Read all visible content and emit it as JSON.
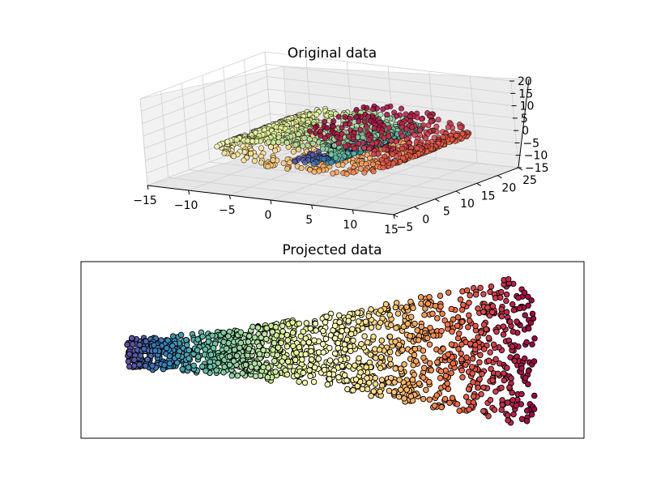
{
  "chart_data": [
    {
      "type": "scatter",
      "projection": "3d",
      "title": "Original data",
      "xlabel": "",
      "ylabel": "",
      "zlabel": "",
      "x_ticks": [
        "−15",
        "−10",
        "−5",
        "0",
        "5",
        "10",
        "15"
      ],
      "y_ticks": [
        "−5",
        "0",
        "5",
        "10",
        "15",
        "20",
        "25"
      ],
      "z_ticks": [
        "−15",
        "−10",
        "−5",
        "0",
        "5",
        "10",
        "15",
        "20"
      ],
      "xlim": [
        -15,
        15
      ],
      "ylim": [
        -5,
        25
      ],
      "zlim": [
        -15,
        20
      ],
      "grid": true,
      "colormap": "Spectral",
      "shape": "swiss roll",
      "n_points": 1500,
      "point_edge_color": "#000000"
    },
    {
      "type": "scatter",
      "title": "Projected data",
      "xlabel": "",
      "ylabel": "",
      "axis_ticks": "none",
      "colormap": "Spectral",
      "shape": "2-D unrolled sheet, narrow at left and widening to the right",
      "n_points": 1500,
      "point_edge_color": "#000000"
    }
  ]
}
